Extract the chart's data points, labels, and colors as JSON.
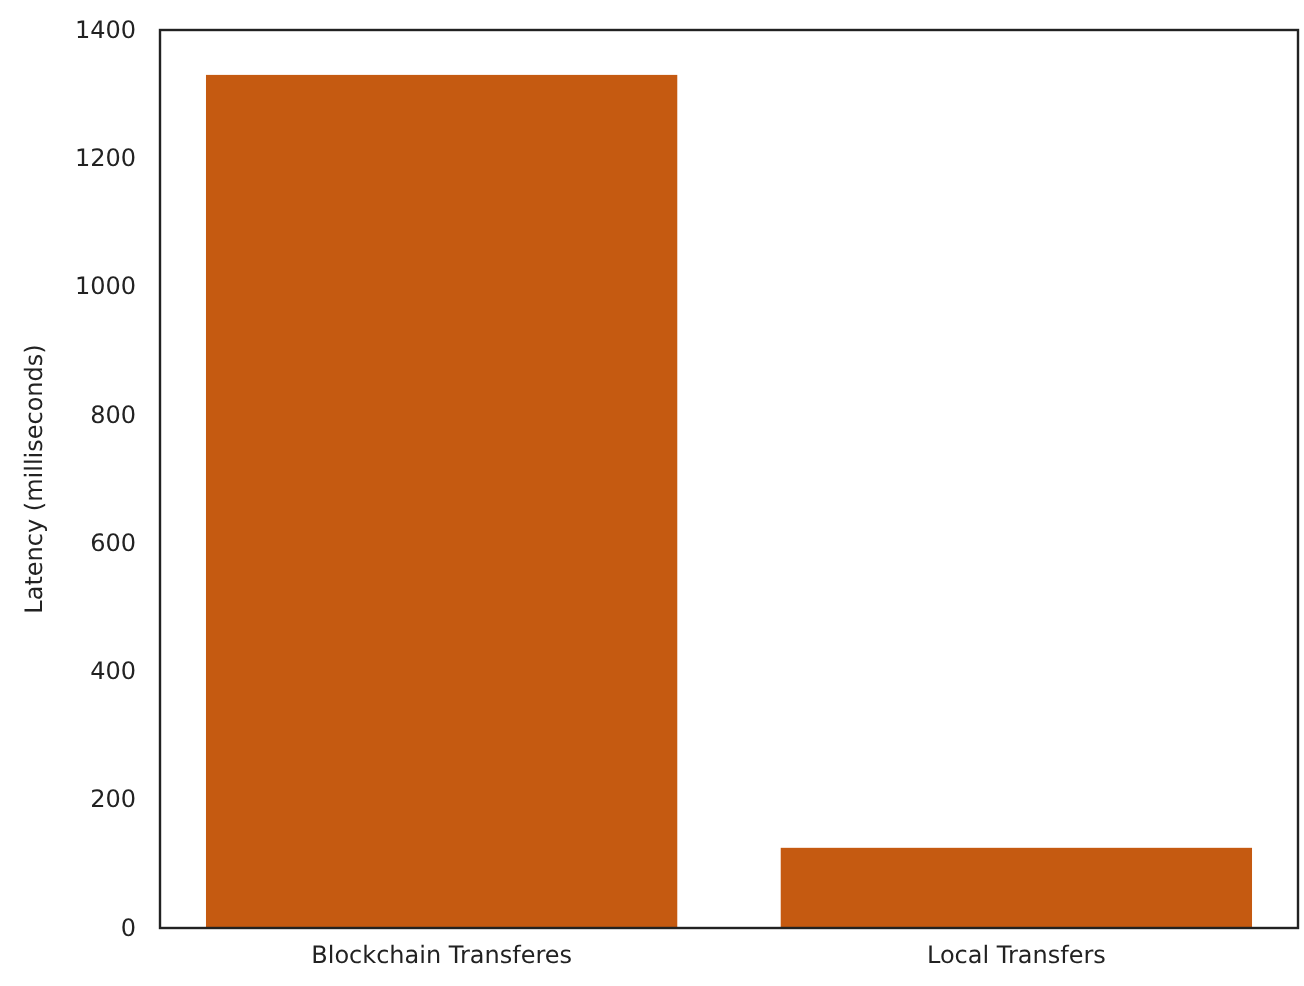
{
  "chart_data": {
    "type": "bar",
    "ylabel": "Latency (milliseconds)",
    "categories": [
      "Blockchain Transferes",
      "Local Transfers"
    ],
    "values": [
      1330,
      125
    ],
    "color": "#c55a11",
    "ylim": [
      0,
      1400
    ],
    "yticks": [
      0,
      200,
      400,
      600,
      800,
      1000,
      1200,
      1400
    ],
    "grid": false
  }
}
